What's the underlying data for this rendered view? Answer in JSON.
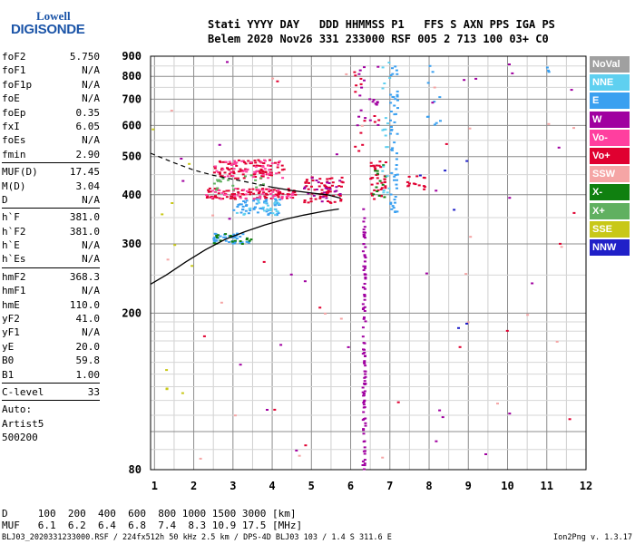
{
  "logo": {
    "line1": "Lowell",
    "line2": "DIGISONDE"
  },
  "header": {
    "line1": "Stati YYYY DAY   DDD HHMMSS P1   FFS S AXN PPS IGA PS",
    "line2": "Belem 2020 Nov26 331 233000 RSF 005 2 713 100 03+ C0"
  },
  "params_group1": [
    {
      "label": "foF2",
      "value": "5.750"
    },
    {
      "label": "foF1",
      "value": "N/A"
    },
    {
      "label": "foF1p",
      "value": "N/A"
    },
    {
      "label": "foE",
      "value": "N/A"
    },
    {
      "label": "foEp",
      "value": "0.35"
    },
    {
      "label": "fxI",
      "value": "6.05"
    },
    {
      "label": "foEs",
      "value": "N/A"
    },
    {
      "label": "fmin",
      "value": "2.90"
    }
  ],
  "params_group2": [
    {
      "label": "MUF(D)",
      "value": "17.45"
    },
    {
      "label": "M(D)",
      "value": "3.04"
    },
    {
      "label": "D",
      "value": "N/A"
    }
  ],
  "params_group3": [
    {
      "label": "h`F",
      "value": "381.0"
    },
    {
      "label": "h`F2",
      "value": "381.0"
    },
    {
      "label": "h`E",
      "value": "N/A"
    },
    {
      "label": "h`Es",
      "value": "N/A"
    }
  ],
  "params_group4": [
    {
      "label": "hmF2",
      "value": "368.3"
    },
    {
      "label": "hmF1",
      "value": "N/A"
    },
    {
      "label": "hmE",
      "value": "110.0"
    },
    {
      "label": "yF2",
      "value": "41.0"
    },
    {
      "label": "yF1",
      "value": "N/A"
    },
    {
      "label": "yE",
      "value": "20.0"
    },
    {
      "label": "B0",
      "value": "59.8"
    },
    {
      "label": "B1",
      "value": "1.00"
    }
  ],
  "params_group5": [
    {
      "label": "C-level",
      "value": "33"
    }
  ],
  "auto_block": {
    "line1": "Auto:",
    "line2": "Artist5",
    "line3": "500200"
  },
  "legend": [
    {
      "name": "NoVal",
      "color": "#a0a0a0"
    },
    {
      "name": "NNE",
      "color": "#5fd0f0"
    },
    {
      "name": "E",
      "color": "#3aa0f0"
    },
    {
      "name": "W",
      "color": "#a000a0"
    },
    {
      "name": "Vo-",
      "color": "#ff3f9f"
    },
    {
      "name": "Vo+",
      "color": "#e00030"
    },
    {
      "name": "SSW",
      "color": "#f5a5a5"
    },
    {
      "name": "X-",
      "color": "#108010"
    },
    {
      "name": "X+",
      "color": "#60b060"
    },
    {
      "name": "SSE",
      "color": "#c8c818"
    },
    {
      "name": "NNW",
      "color": "#2020c8"
    }
  ],
  "chart_data": {
    "type": "scatter",
    "x_axis": {
      "min": 0.9,
      "max": 12,
      "ticks": [
        1,
        2,
        3,
        4,
        5,
        6,
        7,
        8,
        9,
        10,
        11,
        12
      ],
      "grid_step": 0.5
    },
    "y_axis": {
      "scale": "log",
      "min": 80,
      "max": 900,
      "ticks": [
        80,
        100,
        200,
        300,
        400,
        500,
        600,
        700,
        800,
        900
      ],
      "tick_labels": [
        "80",
        "",
        "200",
        "300",
        "400",
        "500",
        "600",
        "700",
        "800",
        "900"
      ]
    },
    "grid": true,
    "profile_curve": [
      [
        0.9,
        237
      ],
      [
        1.3,
        250
      ],
      [
        1.8,
        270
      ],
      [
        2.3,
        290
      ],
      [
        2.8,
        308
      ],
      [
        3.3,
        322
      ],
      [
        3.8,
        335
      ],
      [
        4.3,
        346
      ],
      [
        4.8,
        355
      ],
      [
        5.3,
        363
      ],
      [
        5.7,
        368
      ]
    ],
    "trace_curve_dashed": [
      [
        0.9,
        510
      ],
      [
        1.5,
        482
      ],
      [
        2,
        462
      ],
      [
        2.5,
        448
      ],
      [
        3,
        438
      ],
      [
        3.5,
        428
      ],
      [
        4,
        418
      ]
    ],
    "trace_curve_solid": [
      [
        4,
        418
      ],
      [
        4.5,
        410
      ],
      [
        5,
        404
      ],
      [
        5.4,
        400
      ],
      [
        5.75,
        392
      ]
    ],
    "clusters": [
      {
        "color": "#e00030",
        "x": [
          2.5,
          4.3
        ],
        "y": [
          440,
          490
        ],
        "n": 90
      },
      {
        "color": "#ff3f9f",
        "x": [
          2.5,
          4.3
        ],
        "y": [
          440,
          490
        ],
        "n": 45
      },
      {
        "color": "#e00030",
        "x": [
          2.3,
          4.6
        ],
        "y": [
          390,
          415
        ],
        "n": 90
      },
      {
        "color": "#ff3f9f",
        "x": [
          2.3,
          4.6
        ],
        "y": [
          390,
          415
        ],
        "n": 45
      },
      {
        "color": "#3aa0f0",
        "x": [
          3.0,
          4.2
        ],
        "y": [
          355,
          390
        ],
        "n": 55
      },
      {
        "color": "#5fd0f0",
        "x": [
          3.0,
          4.2
        ],
        "y": [
          355,
          390
        ],
        "n": 25
      },
      {
        "color": "#3aa0f0",
        "x": [
          2.5,
          3.5
        ],
        "y": [
          300,
          320
        ],
        "n": 40
      },
      {
        "color": "#108010",
        "x": [
          2.5,
          3.5
        ],
        "y": [
          300,
          320
        ],
        "n": 18
      },
      {
        "color": "#60b060",
        "x": [
          2.3,
          3.8
        ],
        "y": [
          410,
          450
        ],
        "n": 18
      },
      {
        "color": "#e00030",
        "x": [
          4.8,
          5.8
        ],
        "y": [
          380,
          445
        ],
        "n": 60
      },
      {
        "color": "#a000a0",
        "x": [
          4.8,
          5.8
        ],
        "y": [
          380,
          445
        ],
        "n": 22
      },
      {
        "color": "#e00030",
        "x": [
          6.5,
          6.9
        ],
        "y": [
          390,
          490
        ],
        "n": 35
      },
      {
        "color": "#108010",
        "x": [
          6.5,
          6.9
        ],
        "y": [
          390,
          490
        ],
        "n": 12
      },
      {
        "color": "#e00030",
        "x": [
          7.4,
          7.9
        ],
        "y": [
          410,
          450
        ],
        "n": 14
      },
      {
        "color": "#3aa0f0",
        "x": [
          7.0,
          7.2
        ],
        "y": [
          360,
          870
        ],
        "n": 55
      },
      {
        "color": "#5fd0f0",
        "x": [
          6.8,
          7.0
        ],
        "y": [
          400,
          880
        ],
        "n": 20
      },
      {
        "color": "#a000a0",
        "x": [
          6.3,
          6.37
        ],
        "y": [
          80,
          370
        ],
        "n": 100
      },
      {
        "color": "#a000a0",
        "x": [
          6.1,
          6.7
        ],
        "y": [
          600,
          890
        ],
        "n": 20
      },
      {
        "color": "#e00030",
        "x": [
          6.0,
          6.8
        ],
        "y": [
          500,
          880
        ],
        "n": 14
      },
      {
        "color": "#3aa0f0",
        "x": [
          11.0,
          11.05
        ],
        "y": [
          820,
          850
        ],
        "n": 3
      },
      {
        "color": "#3aa0f0",
        "x": [
          7.9,
          8.3
        ],
        "y": [
          600,
          860
        ],
        "n": 10
      },
      {
        "color": "#a000a0",
        "x": [
          1,
          12
        ],
        "y": [
          85,
          880
        ],
        "n": 30
      },
      {
        "color": "#f5a5a5",
        "x": [
          1,
          12
        ],
        "y": [
          85,
          880
        ],
        "n": 25
      },
      {
        "color": "#e00030",
        "x": [
          1,
          12
        ],
        "y": [
          85,
          880
        ],
        "n": 15
      },
      {
        "color": "#2020c8",
        "x": [
          7.5,
          9.5
        ],
        "y": [
          180,
          520
        ],
        "n": 6
      },
      {
        "color": "#c8c818",
        "x": [
          0.9,
          2.0
        ],
        "y": [
          120,
          600
        ],
        "n": 10
      }
    ]
  },
  "table": {
    "d_label": "D",
    "d_values": "100  200  400  600  800 1000 1500 3000 [km]",
    "muf_label": "MUF",
    "muf_values": "6.1  6.2  6.4  6.8  7.4  8.3 10.9 17.5 [MHz]"
  },
  "footer": {
    "left": "BLJ03_2020331233000.RSF / 224fx512h 50 kHz 2.5 km / DPS-4D BLJ03 103 / 1.4 S 311.6 E",
    "right": "Ion2Png v. 1.3.17"
  }
}
